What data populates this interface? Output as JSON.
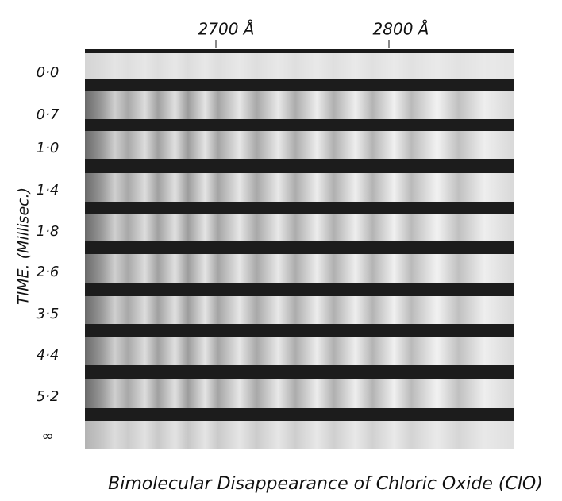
{
  "figure": {
    "wavelength_labels": [
      "2700 Å",
      "2800 Å"
    ],
    "axis_label": "TIME. (Millisec.)",
    "time_labels": [
      "0·0",
      "0·7",
      "1·0",
      "1·4",
      "1·8",
      "2·6",
      "3·5",
      "4·4",
      "5·2",
      "∞"
    ],
    "caption": "Bimolecular  Disappearance of Chloric Oxide (ClO)"
  }
}
